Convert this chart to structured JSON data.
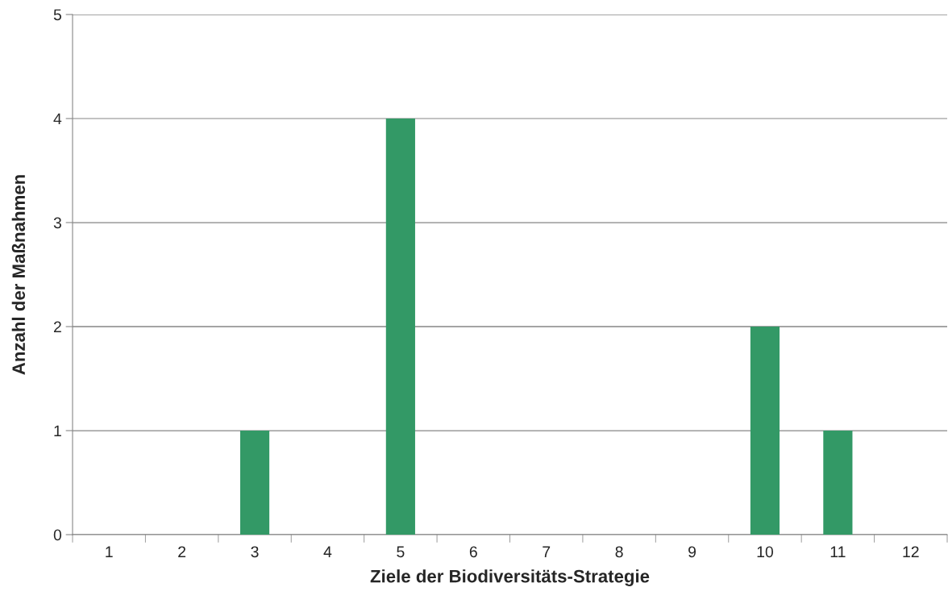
{
  "chart_data": {
    "type": "bar",
    "xlabel": "Ziele der Biodiversitäts-Strategie",
    "ylabel": "Anzahl der Maßnahmen",
    "categories": [
      "1",
      "2",
      "3",
      "4",
      "5",
      "6",
      "7",
      "8",
      "9",
      "10",
      "11",
      "12"
    ],
    "values": [
      0,
      0,
      1,
      0,
      4,
      0,
      0,
      0,
      0,
      2,
      1,
      0
    ],
    "color": "#339966",
    "ylim": [
      0,
      5
    ],
    "yticks": [
      0,
      1,
      2,
      3,
      4,
      5
    ],
    "grid": "y"
  }
}
